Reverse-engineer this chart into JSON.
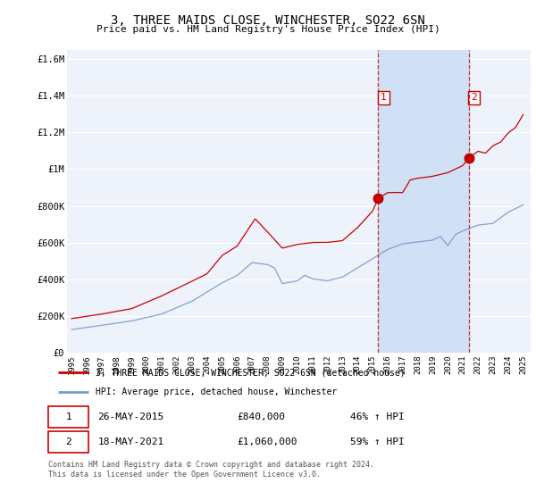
{
  "title": "3, THREE MAIDS CLOSE, WINCHESTER, SO22 6SN",
  "subtitle": "Price paid vs. HM Land Registry's House Price Index (HPI)",
  "legend_property": "3, THREE MAIDS CLOSE, WINCHESTER, SO22 6SN (detached house)",
  "legend_hpi": "HPI: Average price, detached house, Winchester",
  "footer": "Contains HM Land Registry data © Crown copyright and database right 2024.\nThis data is licensed under the Open Government Licence v3.0.",
  "sale1_date": "26-MAY-2015",
  "sale1_price": "£840,000",
  "sale1_hpi": "46% ↑ HPI",
  "sale1_year": 2015.38,
  "sale1_value": 840000,
  "sale2_date": "18-MAY-2021",
  "sale2_price": "£1,060,000",
  "sale2_hpi": "59% ↑ HPI",
  "sale2_year": 2021.38,
  "sale2_value": 1060000,
  "property_color": "#cc0000",
  "hpi_color": "#7799cc",
  "shade_color": "#d0e0f5",
  "background_color": "#ffffff",
  "plot_bg_color": "#eef2fa",
  "grid_color": "#ffffff",
  "ylim": [
    0,
    1650000
  ],
  "xlim": [
    1994.7,
    2025.5
  ],
  "yticks": [
    0,
    200000,
    400000,
    600000,
    800000,
    1000000,
    1200000,
    1400000,
    1600000
  ],
  "ytick_labels": [
    "£0",
    "£200K",
    "£400K",
    "£600K",
    "£800K",
    "£1M",
    "£1.2M",
    "£1.4M",
    "£1.6M"
  ],
  "xticks": [
    1995,
    1996,
    1997,
    1998,
    1999,
    2000,
    2001,
    2002,
    2003,
    2004,
    2005,
    2006,
    2007,
    2008,
    2009,
    2010,
    2011,
    2012,
    2013,
    2014,
    2015,
    2016,
    2017,
    2018,
    2019,
    2020,
    2021,
    2022,
    2023,
    2024,
    2025
  ]
}
